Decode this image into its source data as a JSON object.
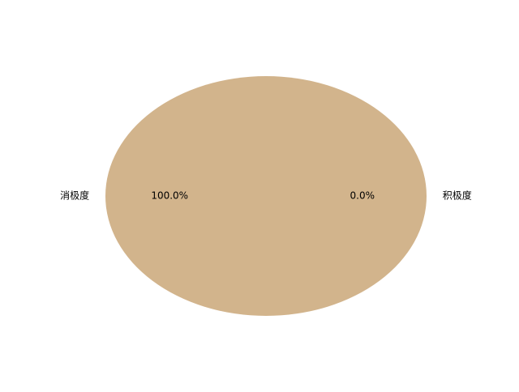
{
  "chart_data": {
    "type": "pie",
    "title": "",
    "labels": [
      "消极度",
      "积极度"
    ],
    "values": [
      100.0,
      0.0
    ],
    "percent_labels": [
      "100.0%",
      "0.0%"
    ],
    "colors": [
      "#d2b48c",
      "#d2b48c"
    ],
    "legend": "none"
  }
}
